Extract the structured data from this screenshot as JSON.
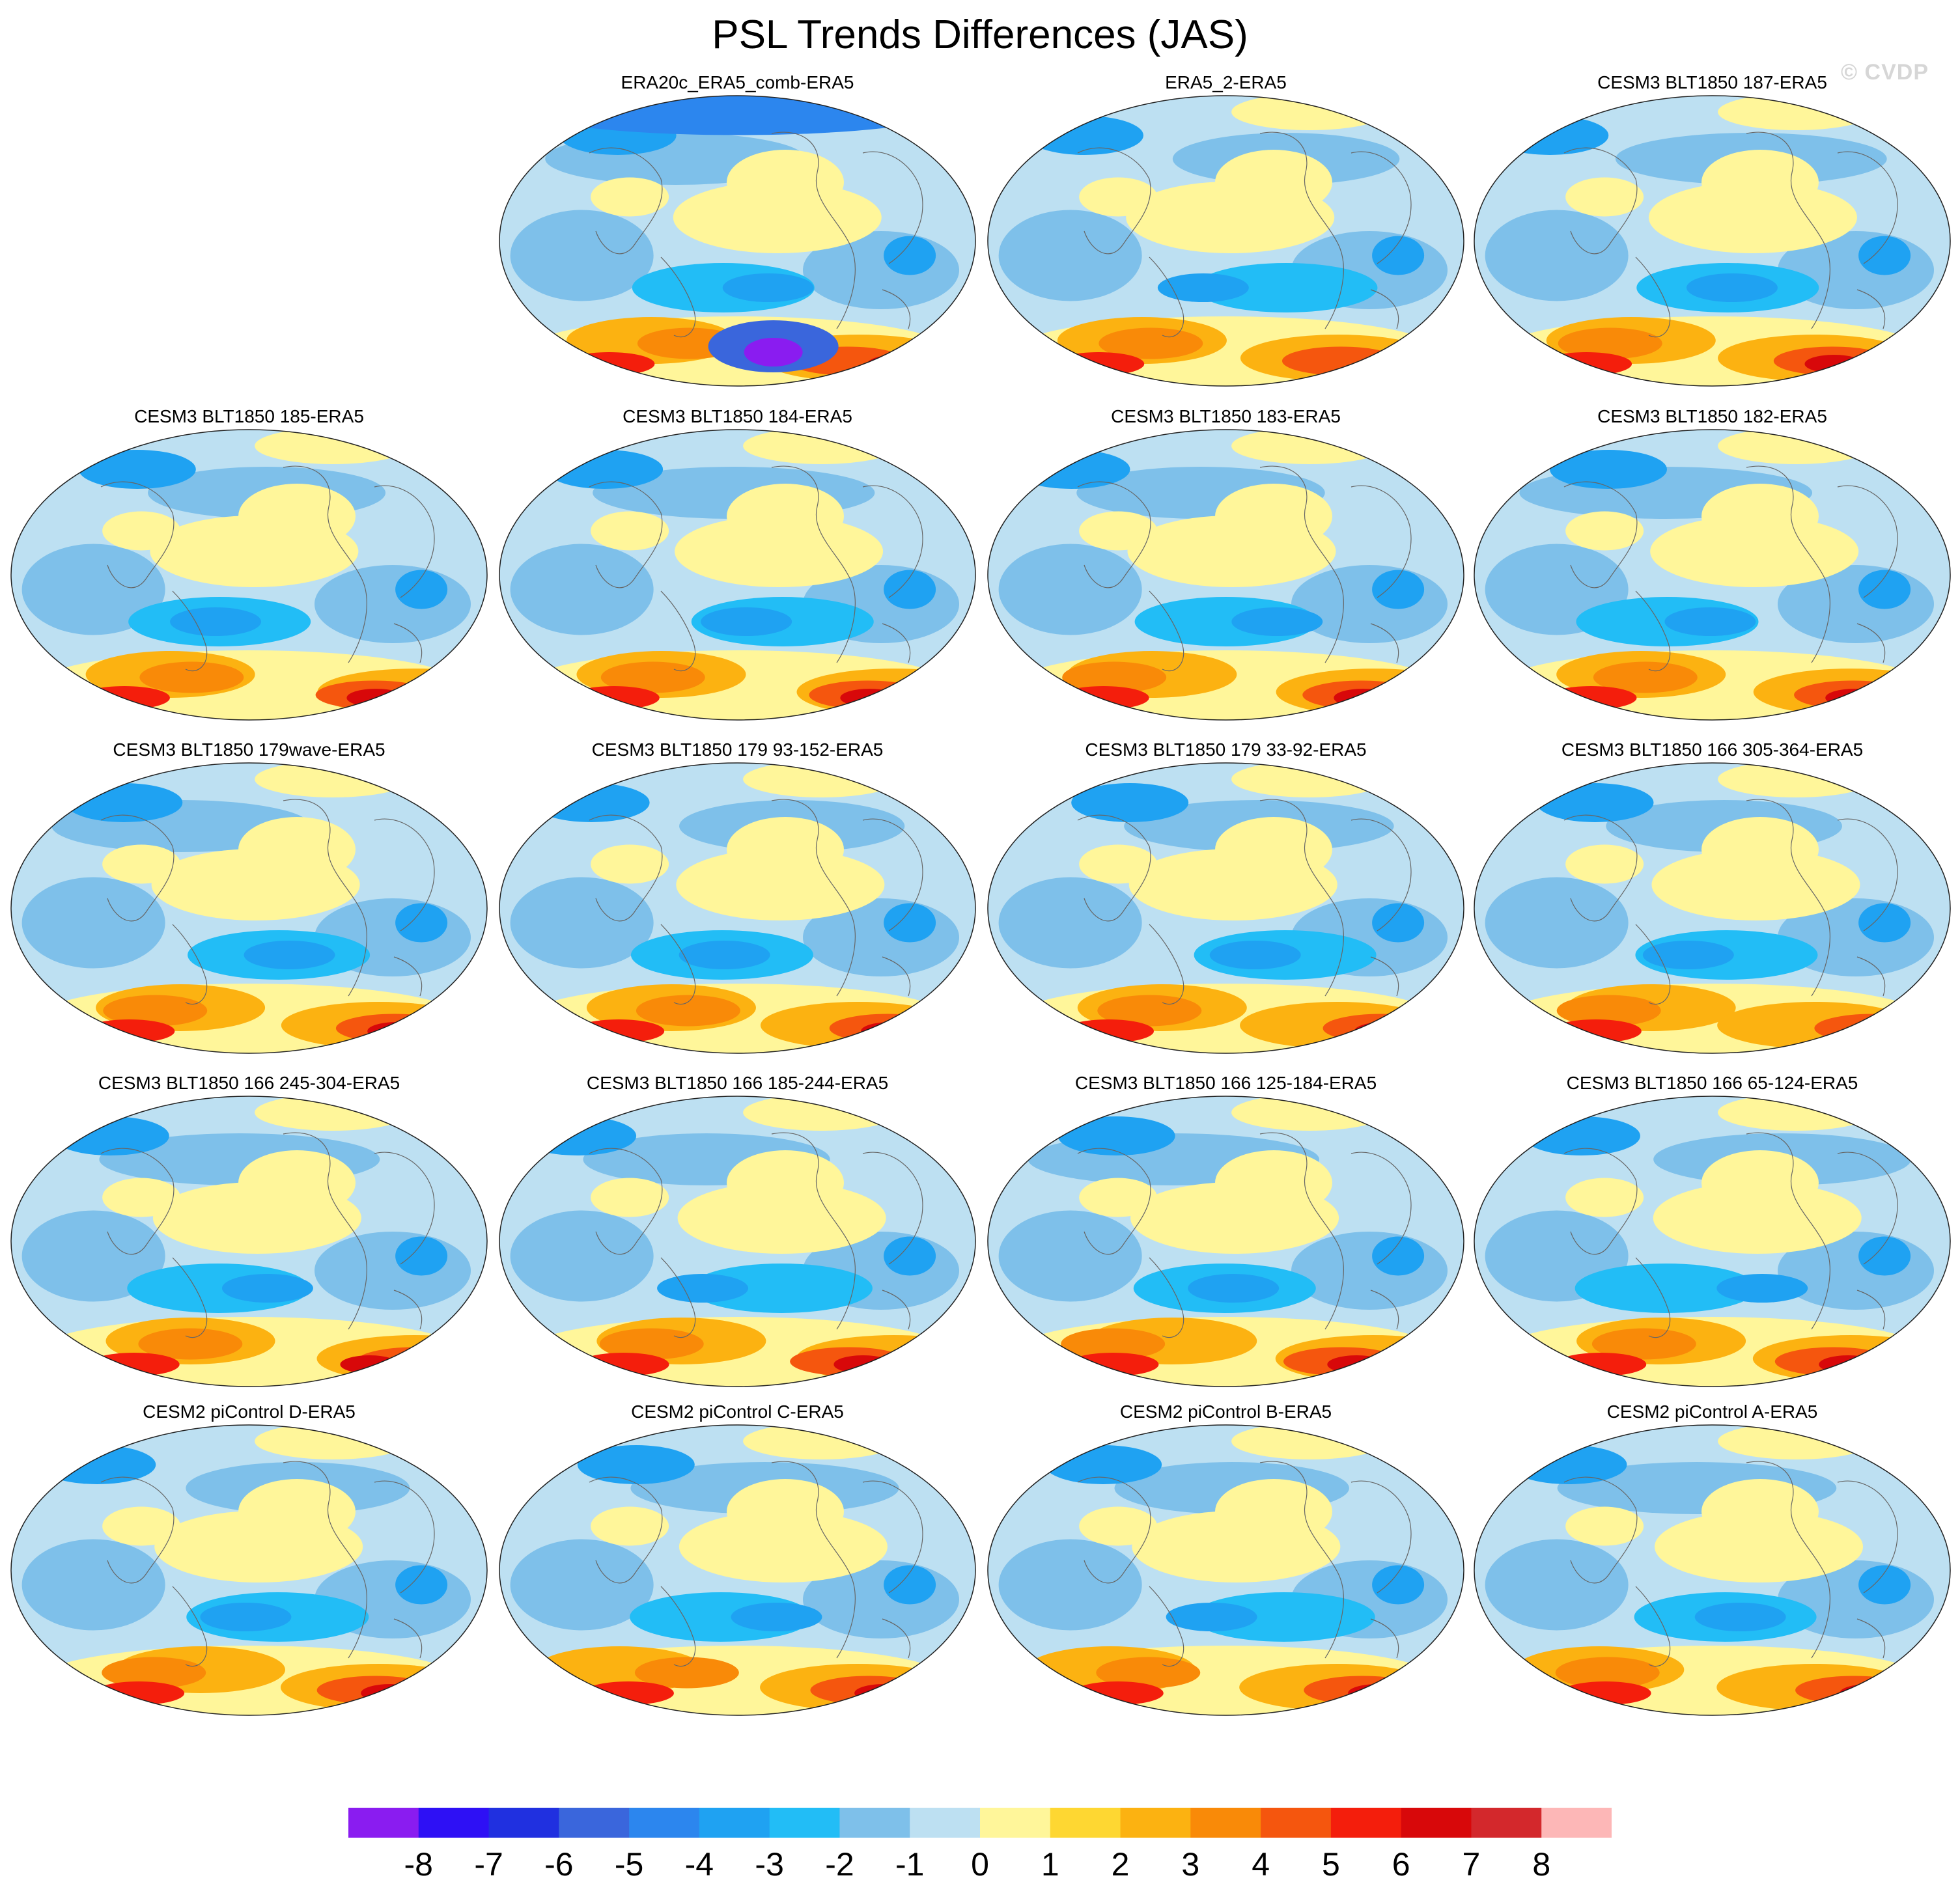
{
  "title": "PSL Trends Differences (JAS)",
  "watermark": "© CVDP",
  "chart_data": {
    "type": "heatmap",
    "title": "PSL Trends Differences (JAS)",
    "projection": "global map (Robinson-like)",
    "panels": [
      {
        "label": "ERA20c_ERA5_comb-ERA5",
        "row": 0,
        "col": 1,
        "pattern": 1
      },
      {
        "label": "ERA5_2-ERA5",
        "row": 0,
        "col": 2,
        "pattern": 2
      },
      {
        "label": "CESM3 BLT1850 187-ERA5",
        "row": 0,
        "col": 3,
        "pattern": 3
      },
      {
        "label": "CESM3 BLT1850 185-ERA5",
        "row": 1,
        "col": 0,
        "pattern": 4
      },
      {
        "label": "CESM3 BLT1850 184-ERA5",
        "row": 1,
        "col": 1,
        "pattern": 5
      },
      {
        "label": "CESM3 BLT1850 183-ERA5",
        "row": 1,
        "col": 2,
        "pattern": 6
      },
      {
        "label": "CESM3 BLT1850 182-ERA5",
        "row": 1,
        "col": 3,
        "pattern": 7
      },
      {
        "label": "CESM3 BLT1850 179wave-ERA5",
        "row": 2,
        "col": 0,
        "pattern": 8
      },
      {
        "label": "CESM3 BLT1850 179 93-152-ERA5",
        "row": 2,
        "col": 1,
        "pattern": 9
      },
      {
        "label": "CESM3 BLT1850 179 33-92-ERA5",
        "row": 2,
        "col": 2,
        "pattern": 10
      },
      {
        "label": "CESM3 BLT1850 166 305-364-ERA5",
        "row": 2,
        "col": 3,
        "pattern": 11
      },
      {
        "label": "CESM3 BLT1850 166 245-304-ERA5",
        "row": 3,
        "col": 0,
        "pattern": 12
      },
      {
        "label": "CESM3 BLT1850 166 185-244-ERA5",
        "row": 3,
        "col": 1,
        "pattern": 13
      },
      {
        "label": "CESM3 BLT1850 166 125-184-ERA5",
        "row": 3,
        "col": 2,
        "pattern": 14
      },
      {
        "label": "CESM3 BLT1850 166 65-124-ERA5",
        "row": 3,
        "col": 3,
        "pattern": 15
      },
      {
        "label": "CESM2 piControl D-ERA5",
        "row": 4,
        "col": 0,
        "pattern": 16
      },
      {
        "label": "CESM2 piControl C-ERA5",
        "row": 4,
        "col": 1,
        "pattern": 17
      },
      {
        "label": "CESM2 piControl B-ERA5",
        "row": 4,
        "col": 2,
        "pattern": 18
      },
      {
        "label": "CESM2 piControl A-ERA5",
        "row": 4,
        "col": 3,
        "pattern": 19
      }
    ],
    "colorbar": {
      "tick_labels": [
        "-8",
        "-7",
        "-6",
        "-5",
        "-4",
        "-3",
        "-2",
        "-1",
        "0",
        "1",
        "2",
        "3",
        "4",
        "5",
        "6",
        "7",
        "8"
      ],
      "tick_values": [
        -8,
        -7,
        -6,
        -5,
        -4,
        -3,
        -2,
        -1,
        0,
        1,
        2,
        3,
        4,
        5,
        6,
        7,
        8
      ],
      "colors": [
        "#8a1cf0",
        "#2e10f5",
        "#2030e0",
        "#3a66dc",
        "#2c86ee",
        "#1fa2f2",
        "#22bdf6",
        "#7ec0ea",
        "#bde0f2",
        "#fff69a",
        "#fed732",
        "#fcb211",
        "#f98a08",
        "#f5560e",
        "#f41e0c",
        "#d8080a",
        "#d3282c",
        "#fdb7b7"
      ]
    }
  }
}
